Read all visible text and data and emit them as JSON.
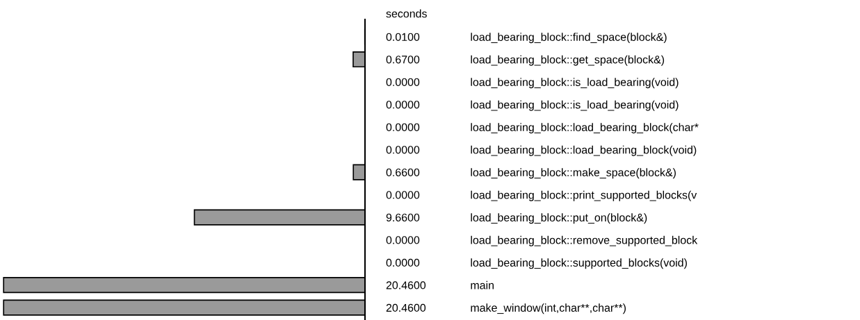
{
  "chart_data": {
    "type": "bar",
    "orientation": "horizontal",
    "xlabel": "seconds",
    "categories": [
      "load_bearing_block::find_space(block&)",
      "load_bearing_block::get_space(block&)",
      "load_bearing_block::is_load_bearing(void)",
      "load_bearing_block::is_load_bearing(void)",
      "load_bearing_block::load_bearing_block(char*",
      "load_bearing_block::load_bearing_block(void)",
      "load_bearing_block::make_space(block&)",
      "load_bearing_block::print_supported_blocks(v",
      "load_bearing_block::put_on(block&)",
      "load_bearing_block::remove_supported_block",
      "load_bearing_block::supported_blocks(void)",
      "main",
      "make_window(int,char**,char**)"
    ],
    "values": [
      0.01,
      0.67,
      0.0,
      0.0,
      0.0,
      0.0,
      0.66,
      0.0,
      9.66,
      0.0,
      0.0,
      20.46,
      20.46
    ],
    "value_labels": [
      "0.0100",
      "0.6700",
      "0.0000",
      "0.0000",
      "0.0000",
      "0.0000",
      "0.6600",
      "0.0000",
      "9.6600",
      "0.0000",
      "0.0000",
      "20.4600",
      "20.4600"
    ],
    "color": "#9a9a9a",
    "tick_labels": "y",
    "grid": false,
    "legend": false
  }
}
